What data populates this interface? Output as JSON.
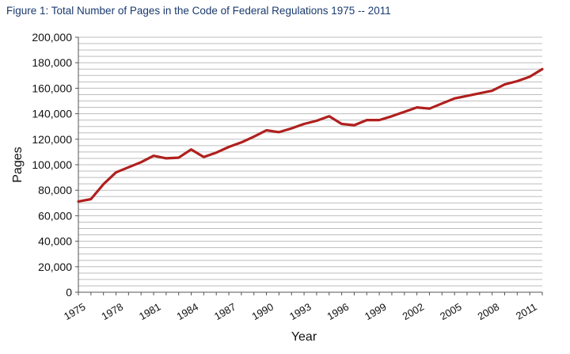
{
  "chart_data": {
    "type": "line",
    "title": "Figure 1: Total Number of Pages in the Code of Federal Regulations 1975 -- 2011",
    "xlabel": "Year",
    "ylabel": "Pages",
    "ylim": [
      0,
      200000
    ],
    "yticks": [
      "0",
      "20,000",
      "40,000",
      "60,000",
      "80,000",
      "100,000",
      "120,000",
      "140,000",
      "160,000",
      "180,000",
      "200,000"
    ],
    "ytick_values": [
      0,
      20000,
      40000,
      60000,
      80000,
      100000,
      120000,
      140000,
      160000,
      180000,
      200000
    ],
    "xticks": [
      "1975",
      "1978",
      "1981",
      "1984",
      "1987",
      "1990",
      "1993",
      "1996",
      "1999",
      "2002",
      "2005",
      "2008",
      "2011"
    ],
    "xtick_values": [
      1975,
      1978,
      1981,
      1984,
      1987,
      1990,
      1993,
      1996,
      1999,
      2002,
      2005,
      2008,
      2011
    ],
    "xlim": [
      1975,
      2012
    ],
    "grid": true,
    "line_color": "#b0201e",
    "series": [
      {
        "x": [
          1975,
          1976,
          1977,
          1978,
          1979,
          1980,
          1981,
          1982,
          1983,
          1984,
          1985,
          1986,
          1987,
          1988,
          1989,
          1990,
          1991,
          1992,
          1993,
          1994,
          1995,
          1996,
          1997,
          1998,
          1999,
          2000,
          2001,
          2002,
          2003,
          2004,
          2005,
          2006,
          2007,
          2008,
          2009,
          2010,
          2011,
          2012
        ],
        "values": [
          71200,
          73000,
          84700,
          94000,
          98000,
          102000,
          107000,
          105000,
          105500,
          112000,
          106000,
          109500,
          114000,
          117500,
          122000,
          127000,
          125500,
          128500,
          132000,
          134500,
          138000,
          132000,
          131000,
          135000,
          135000,
          138000,
          141500,
          145000,
          144000,
          148000,
          152000,
          154000,
          156000,
          158000,
          163000,
          165500,
          169000,
          175000
        ]
      }
    ]
  }
}
